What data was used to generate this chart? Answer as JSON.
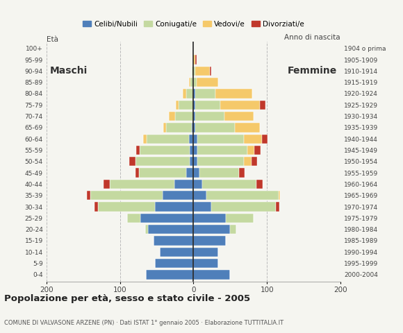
{
  "age_groups": [
    "0-4",
    "5-9",
    "10-14",
    "15-19",
    "20-24",
    "25-29",
    "30-34",
    "35-39",
    "40-44",
    "45-49",
    "50-54",
    "55-59",
    "60-64",
    "65-69",
    "70-74",
    "75-79",
    "80-84",
    "85-89",
    "90-94",
    "95-99",
    "100+"
  ],
  "birth_years": [
    "2000-2004",
    "1995-1999",
    "1990-1994",
    "1985-1989",
    "1980-1984",
    "1975-1979",
    "1970-1974",
    "1965-1969",
    "1960-1964",
    "1955-1959",
    "1950-1954",
    "1945-1949",
    "1940-1944",
    "1935-1939",
    "1930-1934",
    "1925-1929",
    "1920-1924",
    "1915-1919",
    "1910-1914",
    "1905-1909",
    "1904 o prima"
  ],
  "male": {
    "celibi": [
      65,
      52,
      46,
      54,
      62,
      72,
      52,
      42,
      26,
      10,
      5,
      5,
      6,
      2,
      0,
      0,
      0,
      0,
      0,
      0,
      0
    ],
    "coniugati": [
      0,
      0,
      0,
      0,
      4,
      18,
      78,
      98,
      88,
      64,
      74,
      68,
      58,
      35,
      25,
      20,
      10,
      4,
      2,
      0,
      0
    ],
    "vedovi": [
      0,
      0,
      0,
      0,
      0,
      0,
      0,
      0,
      0,
      0,
      0,
      0,
      4,
      4,
      8,
      4,
      5,
      2,
      0,
      0,
      0
    ],
    "divorziati": [
      0,
      0,
      0,
      0,
      0,
      0,
      5,
      5,
      8,
      5,
      8,
      5,
      0,
      0,
      0,
      0,
      0,
      0,
      0,
      0,
      0
    ]
  },
  "female": {
    "celibi": [
      50,
      34,
      34,
      44,
      50,
      44,
      24,
      18,
      12,
      8,
      5,
      5,
      5,
      2,
      2,
      2,
      2,
      0,
      0,
      0,
      0
    ],
    "coniugati": [
      0,
      0,
      0,
      0,
      8,
      38,
      88,
      98,
      74,
      54,
      64,
      68,
      64,
      54,
      40,
      34,
      28,
      4,
      2,
      0,
      0
    ],
    "vedovi": [
      0,
      0,
      0,
      0,
      0,
      0,
      0,
      2,
      0,
      0,
      10,
      10,
      24,
      34,
      40,
      54,
      50,
      30,
      20,
      2,
      0
    ],
    "divorziati": [
      0,
      0,
      0,
      0,
      0,
      0,
      5,
      0,
      8,
      8,
      8,
      8,
      8,
      0,
      0,
      8,
      0,
      0,
      2,
      2,
      0
    ]
  },
  "colors": {
    "celibi": "#4f7fba",
    "coniugati": "#c4d9a0",
    "vedovi": "#f5c96a",
    "divorziati": "#c0382b"
  },
  "xlim": 200,
  "title": "Popolazione per età, sesso e stato civile - 2005",
  "subtitle": "COMUNE DI VALVASONE ARZENE (PN) · Dati ISTAT 1° gennaio 2005 · Elaborazione TUTTITALIA.IT",
  "legend_labels": [
    "Celibi/Nubili",
    "Coniugati/e",
    "Vedovi/e",
    "Divorziati/e"
  ],
  "ylabel_left": "Età",
  "ylabel_right": "Anno di nascita",
  "label_maschi": "Maschi",
  "label_femmine": "Femmine",
  "bg_color": "#f5f5f0",
  "bar_height": 0.82,
  "grid_color": "#bbbbbb"
}
